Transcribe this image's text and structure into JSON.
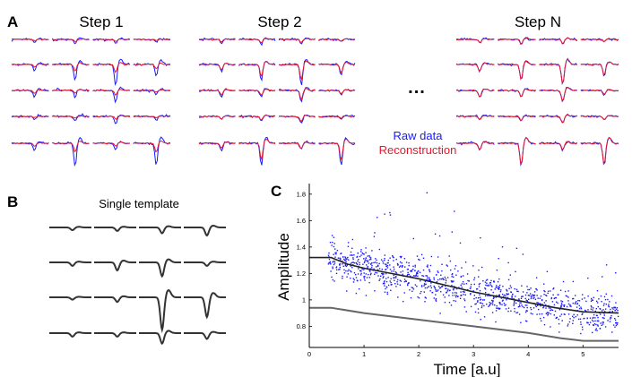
{
  "panel_a": {
    "letter": "A",
    "steps": [
      "Step 1",
      "Step 2",
      "Step N"
    ],
    "ellipsis": "...",
    "legend": {
      "raw_label": "Raw data",
      "recon_label": "Reconstruction",
      "raw_color": "#1a1aff",
      "recon_color": "#e8162b"
    }
  },
  "panel_b": {
    "letter": "B",
    "title": "Single template",
    "trace_color": "#333333"
  },
  "panel_c": {
    "letter": "C",
    "chart_data": {
      "type": "scatter",
      "xlabel": "Time [a.u]",
      "ylabel": "Amplitude",
      "xlim": [
        0,
        5.65
      ],
      "ylim": [
        0.64,
        1.88
      ],
      "xticks": [
        0,
        1,
        2,
        3,
        4,
        5
      ],
      "yticks": [
        0.8,
        1,
        1.2,
        1.4,
        1.6,
        1.8
      ],
      "series": [
        {
          "kind": "scatter",
          "color": "#1a1aff",
          "x_range": [
            0.35,
            5.65
          ],
          "trend": [
            [
              0.35,
              1.31
            ],
            [
              1.0,
              1.24
            ],
            [
              2.0,
              1.16
            ],
            [
              3.0,
              1.06
            ],
            [
              4.0,
              0.98
            ],
            [
              5.0,
              0.91
            ],
            [
              5.65,
              0.9
            ]
          ]
        },
        {
          "kind": "line",
          "color": "#222222",
          "points": [
            [
              0,
              1.32
            ],
            [
              0.4,
              1.32
            ],
            [
              0.7,
              1.27
            ],
            [
              1.0,
              1.24
            ],
            [
              1.5,
              1.2
            ],
            [
              2.0,
              1.16
            ],
            [
              2.5,
              1.11
            ],
            [
              3.0,
              1.06
            ],
            [
              3.5,
              1.02
            ],
            [
              4.0,
              0.98
            ],
            [
              4.5,
              0.94
            ],
            [
              5.0,
              0.91
            ],
            [
              5.65,
              0.9
            ]
          ]
        },
        {
          "kind": "line",
          "color": "#666666",
          "points": [
            [
              0,
              0.94
            ],
            [
              0.4,
              0.94
            ],
            [
              1.0,
              0.9
            ],
            [
              2.0,
              0.85
            ],
            [
              3.0,
              0.8
            ],
            [
              4.0,
              0.75
            ],
            [
              4.6,
              0.71
            ],
            [
              5.0,
              0.69
            ],
            [
              5.65,
              0.69
            ]
          ]
        }
      ]
    }
  }
}
